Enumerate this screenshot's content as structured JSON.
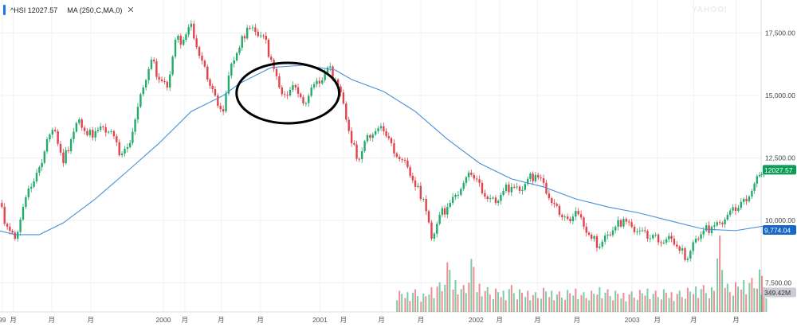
{
  "legend": {
    "symbol": "^HSI",
    "last": "12027.57",
    "indicator": "MA (250,C,MA,0)",
    "close_icon": "close-icon"
  },
  "watermark": "YAHOO!",
  "colors": {
    "up": "#22ab6a",
    "down": "#e2434b",
    "ma": "#4a8fd6",
    "last_badge": "#0c9d58",
    "ma_badge": "#1767c9",
    "vol_badge": "#c9ccd3",
    "annotation": "#000000"
  },
  "chart_data": {
    "type": "candlestick",
    "title": "",
    "y_axis": {
      "ticks": [
        "17,500.00",
        "15,000.00",
        "12,500.00",
        "10,000.00",
        "7,500.00"
      ],
      "tick_values": [
        17500,
        15000,
        12500,
        10000,
        7500
      ],
      "position": "right"
    },
    "x_axis": {
      "labels": [
        {
          "text": "99",
          "date": "1998-12-20"
        },
        {
          "text": "月",
          "date": "1999-01-15"
        },
        {
          "text": "月",
          "date": "1999-04-15"
        },
        {
          "text": "月",
          "date": "1999-07-15"
        },
        {
          "text": "2000",
          "date": "2000-01-01"
        },
        {
          "text": "月",
          "date": "2000-02-20"
        },
        {
          "text": "月",
          "date": "2000-05-15"
        },
        {
          "text": "月",
          "date": "2000-08-15"
        },
        {
          "text": "2001",
          "date": "2001-01-01"
        },
        {
          "text": "月",
          "date": "2001-02-25"
        },
        {
          "text": "月",
          "date": "2001-05-25"
        },
        {
          "text": "月",
          "date": "2001-08-25"
        },
        {
          "text": "2002",
          "date": "2002-01-01"
        },
        {
          "text": "月",
          "date": "2002-02-25"
        },
        {
          "text": "月",
          "date": "2002-05-25"
        },
        {
          "text": "月",
          "date": "2002-08-25"
        },
        {
          "text": "2003",
          "date": "2003-01-01"
        },
        {
          "text": "月",
          "date": "2003-03-01"
        },
        {
          "text": "月",
          "date": "2003-05-25"
        },
        {
          "text": "月",
          "date": "2003-09-01"
        }
      ]
    },
    "grid": true,
    "price": {
      "dates": [
        "1998-12-13",
        "1999-01-01",
        "1999-01-19",
        "1999-02-07",
        "1999-02-26",
        "1999-03-17",
        "1999-04-04",
        "1999-04-23",
        "1999-05-12",
        "1999-05-30",
        "1999-06-18",
        "1999-07-07",
        "1999-07-26",
        "1999-08-13",
        "1999-09-01",
        "1999-09-20",
        "1999-10-09",
        "1999-10-27",
        "1999-11-15",
        "1999-12-04",
        "1999-12-22",
        "2000-01-10",
        "2000-01-29",
        "2000-02-17",
        "2000-03-06",
        "2000-03-25",
        "2000-04-13",
        "2000-05-01",
        "2000-05-20",
        "2000-06-08",
        "2000-06-27",
        "2000-07-15",
        "2000-08-03",
        "2000-08-22",
        "2000-09-09",
        "2000-09-28",
        "2000-10-17",
        "2000-11-05",
        "2000-11-23",
        "2000-12-12",
        "2000-12-31",
        "2001-01-19",
        "2001-02-06",
        "2001-02-25",
        "2001-03-16",
        "2001-04-03",
        "2001-04-22",
        "2001-05-11",
        "2001-05-30",
        "2001-06-17",
        "2001-07-06",
        "2001-07-25",
        "2001-08-12",
        "2001-08-31",
        "2001-09-19",
        "2001-10-08",
        "2001-10-26",
        "2001-11-14",
        "2001-12-03",
        "2001-12-21",
        "2002-01-09",
        "2002-01-28",
        "2002-02-16",
        "2002-03-06",
        "2002-03-25",
        "2002-04-13",
        "2002-05-02",
        "2002-05-20",
        "2002-06-08",
        "2002-06-27",
        "2002-07-15",
        "2002-08-03",
        "2002-08-22",
        "2002-09-10",
        "2002-09-28",
        "2002-10-17",
        "2002-11-05",
        "2002-11-23",
        "2002-12-12",
        "2002-12-31",
        "2003-01-19",
        "2003-02-06",
        "2003-02-25",
        "2003-03-16",
        "2003-04-03",
        "2003-04-22",
        "2003-05-11",
        "2003-05-30",
        "2003-06-17",
        "2003-07-06",
        "2003-07-25",
        "2003-08-12",
        "2003-08-31",
        "2003-09-19",
        "2003-10-08",
        "2003-10-26",
        "2003-11-05"
      ],
      "close": [
        10700,
        9745,
        9270,
        10540,
        11340,
        12130,
        13250,
        13570,
        12290,
        13250,
        14040,
        13410,
        13570,
        13730,
        13570,
        12610,
        12930,
        14040,
        15320,
        16430,
        15640,
        15320,
        17230,
        17230,
        17870,
        16590,
        15640,
        15000,
        14360,
        16270,
        16910,
        17710,
        17550,
        17390,
        16430,
        15320,
        15000,
        15320,
        14680,
        15320,
        15480,
        16120,
        15640,
        14680,
        13090,
        12450,
        13410,
        13570,
        13570,
        13090,
        12450,
        12130,
        11340,
        10860,
        9270,
        10220,
        10540,
        11020,
        11500,
        11820,
        11500,
        10860,
        10700,
        11180,
        11340,
        11180,
        11660,
        11820,
        11500,
        10700,
        10220,
        10060,
        10380,
        9745,
        9270,
        8950,
        9430,
        9745,
        10060,
        9745,
        9590,
        9270,
        9430,
        9110,
        9270,
        8790,
        8470,
        9270,
        9590,
        9745,
        9900,
        10220,
        10380,
        10860,
        11180,
        11820,
        12027.57
      ],
      "last_label": "12027.57"
    },
    "moving_average": {
      "name": "MA (250,C,MA,0)",
      "dates": [
        "1998-12-13",
        "1999-01-19",
        "1999-03-17",
        "1999-05-12",
        "1999-07-26",
        "1999-10-09",
        "1999-12-22",
        "2000-03-06",
        "2000-04-13",
        "2000-05-20",
        "2000-06-27",
        "2000-09-09",
        "2000-11-23",
        "2001-02-06",
        "2001-03-16",
        "2001-05-30",
        "2001-08-12",
        "2001-10-26",
        "2002-01-09",
        "2002-03-25",
        "2002-06-08",
        "2002-08-22",
        "2002-11-05",
        "2003-01-19",
        "2003-04-03",
        "2003-06-17",
        "2003-08-31",
        "2003-11-05"
      ],
      "values": [
        9590,
        9430,
        9430,
        9900,
        10860,
        11970,
        13090,
        14360,
        14680,
        15000,
        15480,
        16120,
        16210,
        16020,
        15640,
        15160,
        14360,
        13250,
        12290,
        11660,
        11340,
        10860,
        10540,
        10290,
        9970,
        9650,
        9590,
        9774.04
      ],
      "last_label": "9,774.04"
    },
    "volume": {
      "unit": "M",
      "dates": [
        "2001-07-06",
        "2001-07-25",
        "2001-08-12",
        "2001-08-31",
        "2001-09-19",
        "2001-10-08",
        "2001-10-26",
        "2001-11-14",
        "2001-12-03",
        "2001-12-21",
        "2002-01-09",
        "2002-01-28",
        "2002-02-16",
        "2002-03-06",
        "2002-03-25",
        "2002-04-13",
        "2002-05-02",
        "2002-05-20",
        "2002-06-08",
        "2002-06-27",
        "2002-07-15",
        "2002-08-03",
        "2002-08-22",
        "2002-09-10",
        "2002-09-28",
        "2002-10-17",
        "2002-11-05",
        "2002-11-23",
        "2002-12-12",
        "2002-12-31",
        "2003-01-19",
        "2003-02-06",
        "2003-02-25",
        "2003-03-16",
        "2003-04-03",
        "2003-04-22",
        "2003-05-11",
        "2003-05-30",
        "2003-06-17",
        "2003-07-06",
        "2003-07-25",
        "2003-08-12",
        "2003-08-31",
        "2003-09-19",
        "2003-10-08",
        "2003-10-26",
        "2003-11-05"
      ],
      "values": [
        300,
        280,
        320,
        260,
        350,
        420,
        700,
        450,
        380,
        750,
        400,
        350,
        330,
        300,
        380,
        320,
        300,
        280,
        340,
        300,
        290,
        310,
        330,
        280,
        300,
        350,
        320,
        300,
        270,
        290,
        310,
        330,
        300,
        320,
        280,
        300,
        340,
        360,
        380,
        350,
        1080,
        400,
        420,
        450,
        480,
        600,
        349.42
      ],
      "last_label": "349.42M"
    },
    "annotations": [
      {
        "type": "ellipse",
        "around_dates": [
          "2000-06-20",
          "2001-02-15"
        ]
      }
    ]
  }
}
